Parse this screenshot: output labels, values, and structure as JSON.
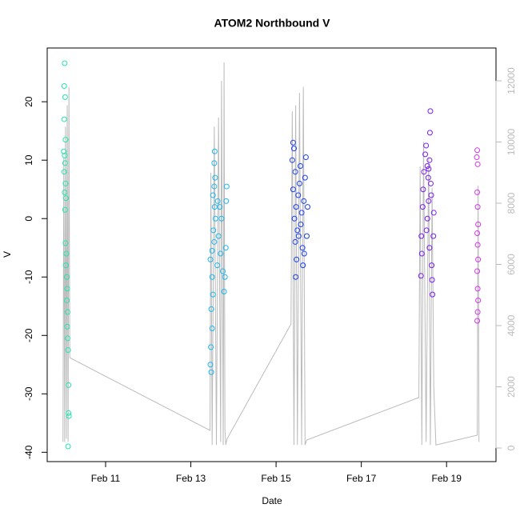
{
  "chart_data": {
    "type": "scatter",
    "title": "ATOM2 Northbound V",
    "x_label": "Date",
    "y_label": "V",
    "xlim": [
      9.63,
      20.16
    ],
    "ylim": [
      -41.6,
      29.2
    ],
    "y2lim": [
      -444,
      13072
    ],
    "xticks": [
      {
        "value": 11,
        "label": "Feb 11"
      },
      {
        "value": 13,
        "label": "Feb 13"
      },
      {
        "value": 15,
        "label": "Feb 15"
      },
      {
        "value": 17,
        "label": "Feb 17"
      },
      {
        "value": 19,
        "label": "Feb 19"
      }
    ],
    "yticks": [
      -40,
      -30,
      -20,
      -10,
      0,
      10,
      20
    ],
    "y2ticks": [
      0,
      2000,
      4000,
      6000,
      8000,
      10000,
      12000
    ],
    "y2_tick_color": "#bbbbbb",
    "series": [
      {
        "color": "#22e6b0",
        "x": [
          10.04,
          10.03,
          10.05,
          10.03,
          10.06,
          10.02,
          10.04,
          10.05,
          10.03,
          10.06,
          10.04,
          10.07,
          10.05,
          10.06,
          10.08,
          10.07,
          10.09,
          10.1,
          10.09,
          10.11,
          10.1,
          10.11,
          10.12,
          10.13,
          10.13,
          10.14,
          10.12
        ],
        "values": [
          26.6,
          22.7,
          20.8,
          17,
          13.5,
          11.5,
          10.8,
          9.5,
          8,
          6,
          4.5,
          3.5,
          1.5,
          -4.2,
          -6,
          -8,
          -10,
          -12,
          -14,
          -16,
          -18.5,
          -20.5,
          -22.5,
          -28.5,
          -33.3,
          -33.8,
          -39
        ]
      },
      {
        "color": "#1ab8f0",
        "x": [
          13.48,
          13.46,
          13.47,
          13.5,
          13.48,
          13.52,
          13.5,
          13.46,
          13.5,
          13.55,
          13.53,
          13.58,
          13.56,
          13.52,
          13.55,
          13.57,
          13.55,
          13.56,
          13.62,
          13.65,
          13.68,
          13.7,
          13.63,
          13.75,
          13.78,
          13.8,
          13.82,
          13.84,
          13.83,
          13.72
        ],
        "values": [
          -26.3,
          -25,
          -22,
          -18.8,
          -15.5,
          -13,
          -10,
          -7,
          -5.5,
          -4,
          -2,
          0,
          2,
          4,
          5.5,
          7,
          9.5,
          11.5,
          -8,
          -3,
          2,
          -6,
          3,
          -9,
          -12.5,
          -10,
          -5,
          5.5,
          3,
          0
        ]
      },
      {
        "color": "#1a40f0",
        "x": [
          15.4,
          15.42,
          15.38,
          15.45,
          15.4,
          15.47,
          15.43,
          15.5,
          15.45,
          15.48,
          15.46,
          15.52,
          15.55,
          15.58,
          15.6,
          15.62,
          15.57,
          15.65,
          15.68,
          15.7,
          15.72,
          15.66,
          15.63,
          15.53,
          15.74
        ],
        "values": [
          13,
          12,
          10,
          8,
          5,
          2,
          0,
          -2,
          -4,
          -7,
          -10,
          4,
          6,
          -1,
          1,
          -5,
          9,
          3,
          7,
          10.5,
          -3,
          -6,
          -8,
          -3,
          2
        ]
      },
      {
        "color": "#7a1cf0",
        "x": [
          18.4,
          18.42,
          18.41,
          18.44,
          18.45,
          18.47,
          18.5,
          18.52,
          18.55,
          18.57,
          18.58,
          18.6,
          18.62,
          18.61,
          18.63,
          18.58,
          18.55,
          18.6,
          18.65,
          18.66,
          18.67,
          18.69,
          18.7,
          18.64,
          18.53
        ],
        "values": [
          -9.8,
          -6,
          -3,
          2,
          5,
          8,
          11,
          12.5,
          9,
          7,
          8.5,
          10,
          18.4,
          14.7,
          6,
          3,
          0,
          -5,
          -8,
          -10.5,
          -13,
          -3,
          1,
          4,
          -2
        ]
      },
      {
        "color": "#d633ee",
        "x": [
          19.72,
          19.71,
          19.73,
          19.72,
          19.73,
          19.74,
          19.72,
          19.73,
          19.74,
          19.72,
          19.73,
          19.74,
          19.73,
          19.72
        ],
        "values": [
          11.7,
          10.5,
          9.3,
          4.5,
          2,
          -1,
          -2.5,
          -4.5,
          -7,
          -9,
          -12,
          -14,
          -16,
          -17.5
        ]
      },
      {
        "type": "line",
        "axis": "y2",
        "color": "#bbbbbb",
        "x": [
          10.0,
          10.02,
          10.04,
          10.06,
          10.08,
          10.1,
          10.12,
          10.14,
          10.16,
          13.45,
          13.47,
          13.5,
          13.55,
          13.6,
          13.65,
          13.7,
          13.72,
          13.76,
          13.78,
          13.8,
          13.82,
          13.85,
          15.35,
          15.38,
          15.42,
          15.46,
          15.5,
          15.55,
          15.6,
          15.64,
          15.68,
          15.72,
          18.35,
          18.38,
          18.42,
          18.46,
          18.52,
          18.58,
          18.62,
          18.66,
          18.7,
          18.75,
          19.72,
          19.74,
          19.76
        ],
        "values": [
          200,
          9500,
          200,
          10500,
          300,
          11200,
          200,
          11800,
          2950,
          575,
          9000,
          100,
          10500,
          100,
          10800,
          200,
          12000,
          100,
          12600,
          600,
          100,
          300,
          4050,
          11000,
          100,
          11200,
          100,
          11600,
          100,
          11800,
          100,
          260,
          1650,
          9200,
          100,
          10000,
          200,
          9500,
          100,
          8500,
          2000,
          100,
          420,
          8580,
          200
        ]
      }
    ]
  }
}
